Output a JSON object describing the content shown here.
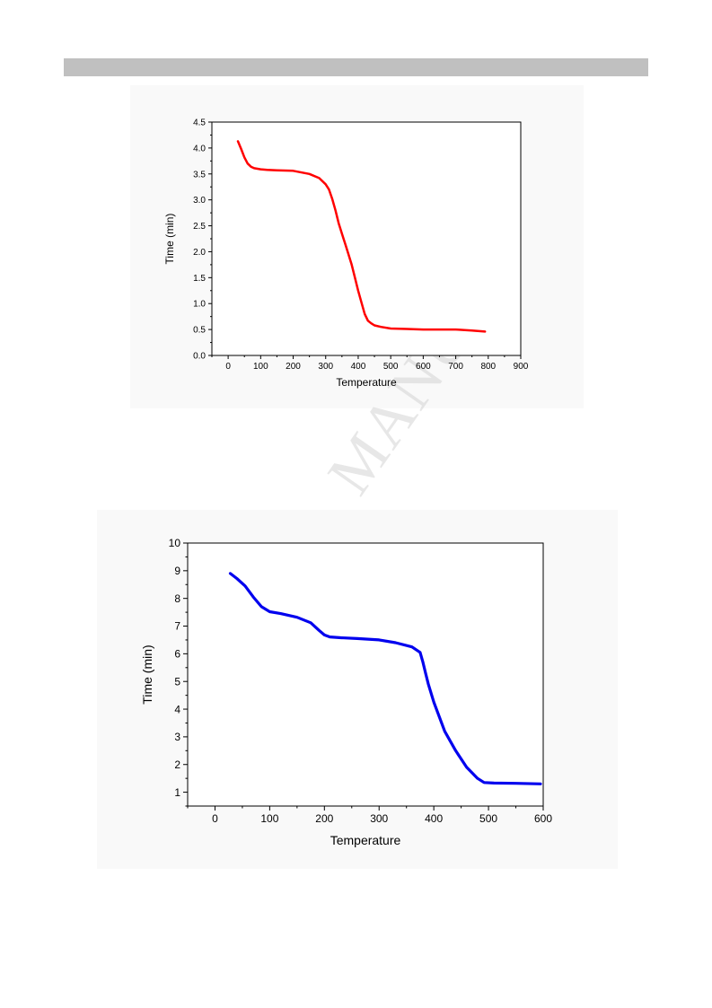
{
  "watermark": "MANU",
  "chart_data": [
    {
      "type": "line",
      "xlabel": "Temperature",
      "ylabel": "Time (min)",
      "xlim": [
        -50,
        900
      ],
      "ylim": [
        0,
        4.5
      ],
      "xticks": [
        0,
        100,
        200,
        300,
        400,
        500,
        600,
        700,
        800,
        900
      ],
      "yticks": [
        0.0,
        0.5,
        1.0,
        1.5,
        2.0,
        2.5,
        3.0,
        3.5,
        4.0,
        4.5
      ],
      "ytick_labels": [
        "0.0",
        "0.5",
        "1.0",
        "1.5",
        "2.0",
        "2.5",
        "3.0",
        "3.5",
        "4.0",
        "4.5"
      ],
      "grid": false,
      "color": "#ff0000",
      "series": [
        {
          "x": [
            30,
            40,
            50,
            60,
            70,
            80,
            100,
            120,
            150,
            200,
            250,
            280,
            300,
            310,
            320,
            330,
            340,
            350,
            360,
            370,
            380,
            390,
            400,
            410,
            420,
            430,
            440,
            450,
            470,
            500,
            550,
            600,
            650,
            700,
            750,
            790
          ],
          "values": [
            4.13,
            3.98,
            3.82,
            3.7,
            3.64,
            3.61,
            3.59,
            3.58,
            3.57,
            3.56,
            3.5,
            3.42,
            3.3,
            3.2,
            3.02,
            2.8,
            2.55,
            2.35,
            2.15,
            1.95,
            1.75,
            1.5,
            1.25,
            1.02,
            0.8,
            0.67,
            0.62,
            0.58,
            0.55,
            0.52,
            0.51,
            0.5,
            0.5,
            0.5,
            0.48,
            0.46
          ]
        }
      ]
    },
    {
      "type": "line",
      "xlabel": "Temperature",
      "ylabel": "Time (min)",
      "xlim": [
        -50,
        600
      ],
      "ylim": [
        0.5,
        10
      ],
      "xticks": [
        0,
        100,
        200,
        300,
        400,
        500,
        600
      ],
      "yticks": [
        1,
        2,
        3,
        4,
        5,
        6,
        7,
        8,
        9,
        10
      ],
      "ytick_labels": [
        "1",
        "2",
        "3",
        "4",
        "5",
        "6",
        "7",
        "8",
        "9",
        "10"
      ],
      "grid": false,
      "color": "#0000ee",
      "series": [
        {
          "x": [
            28,
            40,
            55,
            70,
            85,
            100,
            120,
            150,
            175,
            190,
            200,
            210,
            230,
            260,
            300,
            330,
            360,
            375,
            380,
            385,
            390,
            400,
            420,
            440,
            460,
            480,
            492,
            510,
            550,
            595
          ],
          "values": [
            8.9,
            8.72,
            8.45,
            8.05,
            7.7,
            7.52,
            7.45,
            7.32,
            7.12,
            6.85,
            6.68,
            6.61,
            6.58,
            6.55,
            6.5,
            6.4,
            6.25,
            6.05,
            5.7,
            5.3,
            4.9,
            4.25,
            3.2,
            2.5,
            1.9,
            1.5,
            1.35,
            1.33,
            1.32,
            1.3
          ]
        }
      ]
    }
  ]
}
